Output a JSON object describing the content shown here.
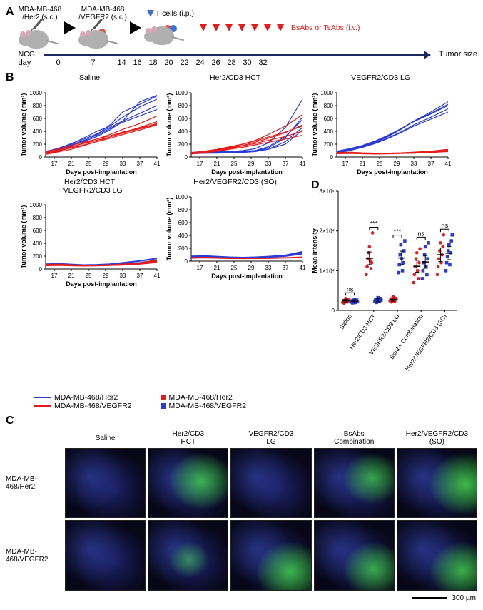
{
  "panelA": {
    "label": "A",
    "mouse_strain": "NCG",
    "injections": [
      {
        "label": "MDA-MB-468\n/Her2 (s.c.)"
      },
      {
        "label": "MDA-MB-468\n/VEGFR2 (s.c.)"
      }
    ],
    "tcell_label": "T cells (i.p.)",
    "tcell_arrow_color": "#3a6fd8",
    "treatment_label": "BsAbs or TsAbs (i.v.)",
    "treatment_arrow_color": "#e61c1c",
    "timeline_label": "Tumor size",
    "day_label": "day",
    "days": [
      0,
      7,
      14,
      16,
      18,
      20,
      22,
      24,
      26,
      28,
      30,
      32
    ],
    "treatment_days": [
      16,
      18,
      20,
      22,
      24,
      26,
      28
    ]
  },
  "panelB": {
    "label": "B",
    "ylabel": "Tumor volume (mm³)",
    "xlabel": "Days post-implantation",
    "ylim": [
      0,
      1000
    ],
    "ytick_step": 200,
    "xlim": [
      15,
      41
    ],
    "xticks": [
      17,
      21,
      25,
      29,
      33,
      37,
      41
    ],
    "line_colors": {
      "her2": "#2a3bd6",
      "vegfr2": "#e61c1c"
    },
    "charts": [
      {
        "title": "Saline",
        "her2_series": [
          [
            60,
            100,
            180,
            240,
            320,
            420,
            560,
            860,
            960
          ],
          [
            80,
            140,
            200,
            300,
            400,
            480,
            620,
            780,
            900
          ],
          [
            70,
            110,
            170,
            250,
            350,
            500,
            700,
            820,
            950
          ],
          [
            90,
            130,
            210,
            280,
            360,
            460,
            560,
            680,
            800
          ],
          [
            60,
            120,
            190,
            260,
            340,
            440,
            540,
            640,
            740
          ]
        ],
        "vegfr2_series": [
          [
            50,
            90,
            150,
            220,
            280,
            350,
            430,
            520,
            640
          ],
          [
            40,
            80,
            120,
            180,
            240,
            310,
            380,
            460,
            550
          ],
          [
            60,
            100,
            140,
            190,
            240,
            290,
            350,
            420,
            500
          ],
          [
            80,
            130,
            180,
            230,
            280,
            330,
            390,
            450,
            520
          ],
          [
            70,
            110,
            160,
            210,
            260,
            310,
            370,
            440,
            510
          ]
        ]
      },
      {
        "title": "Her2/CD3 HCT",
        "her2_series": [
          [
            60,
            70,
            80,
            85,
            90,
            100,
            120,
            200,
            420
          ],
          [
            50,
            60,
            65,
            70,
            80,
            95,
            140,
            300,
            620
          ],
          [
            70,
            75,
            80,
            85,
            100,
            130,
            220,
            460,
            900
          ],
          [
            60,
            65,
            70,
            70,
            80,
            100,
            160,
            320,
            580
          ],
          [
            55,
            60,
            60,
            65,
            70,
            85,
            120,
            240,
            460
          ]
        ],
        "vegfr2_series": [
          [
            60,
            80,
            110,
            150,
            200,
            260,
            350,
            480,
            660
          ],
          [
            50,
            70,
            100,
            140,
            180,
            230,
            290,
            380,
            500
          ],
          [
            70,
            90,
            120,
            160,
            200,
            250,
            310,
            390,
            480
          ],
          [
            55,
            75,
            100,
            130,
            170,
            210,
            260,
            320,
            400
          ],
          [
            45,
            65,
            90,
            120,
            150,
            190,
            230,
            280,
            340
          ]
        ]
      },
      {
        "title": "VEGFR2/CD3 LG",
        "her2_series": [
          [
            70,
            110,
            160,
            230,
            320,
            430,
            560,
            700,
            860
          ],
          [
            80,
            120,
            170,
            240,
            330,
            440,
            550,
            670,
            800
          ],
          [
            60,
            100,
            150,
            210,
            290,
            380,
            480,
            590,
            700
          ],
          [
            90,
            130,
            180,
            250,
            340,
            440,
            560,
            680,
            820
          ],
          [
            75,
            115,
            160,
            220,
            300,
            390,
            500,
            620,
            750
          ]
        ],
        "vegfr2_series": [
          [
            60,
            65,
            55,
            50,
            55,
            60,
            70,
            90,
            120
          ],
          [
            50,
            55,
            50,
            45,
            50,
            55,
            60,
            70,
            90
          ],
          [
            70,
            75,
            65,
            60,
            60,
            65,
            75,
            90,
            110
          ],
          [
            55,
            60,
            55,
            50,
            50,
            55,
            60,
            70,
            85
          ],
          [
            65,
            70,
            60,
            55,
            55,
            60,
            65,
            80,
            100
          ]
        ]
      },
      {
        "title": "Her2/CD3 HCT\n+ VEGFR2/CD3 LG",
        "her2_series": [
          [
            70,
            80,
            70,
            60,
            65,
            75,
            90,
            120,
            160
          ],
          [
            60,
            70,
            65,
            55,
            55,
            60,
            70,
            90,
            120
          ],
          [
            80,
            85,
            75,
            65,
            70,
            80,
            100,
            130,
            170
          ],
          [
            65,
            70,
            60,
            55,
            55,
            60,
            70,
            85,
            110
          ],
          [
            75,
            80,
            70,
            60,
            60,
            65,
            80,
            100,
            140
          ]
        ],
        "vegfr2_series": [
          [
            55,
            60,
            55,
            50,
            55,
            60,
            70,
            90,
            130
          ],
          [
            50,
            55,
            50,
            45,
            50,
            55,
            60,
            75,
            100
          ],
          [
            65,
            70,
            60,
            55,
            55,
            60,
            70,
            85,
            120
          ],
          [
            60,
            65,
            55,
            50,
            50,
            55,
            65,
            80,
            110
          ],
          [
            70,
            75,
            65,
            60,
            60,
            65,
            75,
            95,
            140
          ]
        ]
      },
      {
        "title": "Her2/VEGFR2/CD3 (SO)",
        "her2_series": [
          [
            70,
            75,
            70,
            60,
            55,
            60,
            70,
            90,
            140
          ],
          [
            60,
            65,
            60,
            55,
            50,
            55,
            65,
            80,
            120
          ],
          [
            80,
            85,
            75,
            65,
            60,
            65,
            75,
            95,
            150
          ],
          [
            65,
            70,
            60,
            55,
            50,
            55,
            60,
            75,
            110
          ],
          [
            75,
            80,
            70,
            60,
            55,
            60,
            70,
            85,
            130
          ]
        ],
        "vegfr2_series": [
          [
            50,
            55,
            50,
            45,
            40,
            42,
            45,
            50,
            60
          ],
          [
            45,
            50,
            45,
            40,
            38,
            40,
            42,
            48,
            55
          ],
          [
            55,
            60,
            55,
            50,
            45,
            45,
            50,
            55,
            65
          ],
          [
            48,
            52,
            48,
            42,
            40,
            40,
            45,
            50,
            58
          ],
          [
            52,
            58,
            52,
            46,
            42,
            44,
            48,
            52,
            62
          ]
        ]
      }
    ],
    "legend_lines": [
      {
        "color": "#2a3bd6",
        "label": "MDA-MB-468/Her2"
      },
      {
        "color": "#e61c1c",
        "label": "MDA-MB-468/VEGFR2"
      }
    ],
    "legend_points": [
      {
        "shape": "circle",
        "color": "#e61c1c",
        "label": "MDA-MB-468/Her2"
      },
      {
        "shape": "square",
        "color": "#2a3bd6",
        "label": "MDA-MB-468/VEGFR2"
      }
    ]
  },
  "panelC": {
    "label": "C",
    "columns": [
      "Saline",
      "Her2/CD3\nHCT",
      "VEGFR2/CD3\nLG",
      "BsAbs\nCombination",
      "Her2/VEGFR2/CD3\n(SO)"
    ],
    "rows": [
      "MDA-MB-468/Her2",
      "MDA-MB-468/VEGFR2"
    ],
    "green_intensity": [
      [
        0.05,
        0.55,
        0.06,
        0.45,
        0.65
      ],
      [
        0.05,
        0.15,
        0.6,
        0.5,
        0.55
      ]
    ],
    "scale_bar": "300 µm",
    "bg_color": "#070718",
    "blue_tone": "#2b3bc0",
    "green_tone": "#4cff4c"
  },
  "panelD": {
    "label": "D",
    "ylabel": "Mean intensity",
    "ylim": [
      0,
      30000
    ],
    "yticks": [
      0,
      10000,
      20000,
      30000
    ],
    "ytick_labels": [
      "0",
      "1×10⁴",
      "2×10⁴",
      "3×10⁴"
    ],
    "categories": [
      "Saline",
      "Her2/CD3 HCT",
      "VEGFR2/CD3 LG",
      "BsAbs Combination",
      "Her2/VEGFR2/CD3 (SO)"
    ],
    "groups": [
      {
        "her2": {
          "points": [
            2000,
            2500,
            1800,
            2200,
            3000,
            2600,
            2100,
            2800,
            2400
          ],
          "mean": 2400,
          "sem": 400
        },
        "vegfr2": {
          "points": [
            2100,
            2400,
            1900,
            2300,
            2700,
            2500,
            2000,
            2600,
            2200
          ],
          "mean": 2300,
          "sem": 380
        }
      },
      {
        "her2": {
          "points": [
            9000,
            11000,
            13000,
            14500,
            16000,
            12500,
            10500,
            12000,
            19500
          ],
          "mean": 13100,
          "sem": 1600
        },
        "vegfr2": {
          "points": [
            2300,
            2800,
            2000,
            2500,
            3200,
            2900,
            2200,
            3000,
            2600
          ],
          "mean": 2600,
          "sem": 420
        }
      },
      {
        "her2": {
          "points": [
            2400,
            2900,
            2100,
            2600,
            3500,
            3000,
            2300,
            3100,
            2800
          ],
          "mean": 2750,
          "sem": 440
        },
        "vegfr2": {
          "points": [
            9500,
            11500,
            14000,
            16500,
            13000,
            10000,
            12000,
            15000,
            17500
          ],
          "mean": 13200,
          "sem": 1700
        }
      },
      {
        "her2": {
          "points": [
            7000,
            9000,
            11000,
            13000,
            14500,
            10000,
            8000,
            12000,
            15500
          ],
          "mean": 11100,
          "sem": 1500
        },
        "vegfr2": {
          "points": [
            8000,
            10000,
            12000,
            14000,
            16000,
            11000,
            9000,
            13000,
            17000
          ],
          "mean": 12200,
          "sem": 1600
        }
      },
      {
        "her2": {
          "points": [
            9000,
            11000,
            13000,
            15000,
            17000,
            12000,
            14000,
            16000,
            19000
          ],
          "mean": 14000,
          "sem": 1700
        },
        "vegfr2": {
          "points": [
            10000,
            12000,
            13500,
            15000,
            16500,
            11500,
            14500,
            17500,
            19000
          ],
          "mean": 14400,
          "sem": 1650
        }
      }
    ],
    "significance": [
      {
        "pair": 0,
        "label": "ns"
      },
      {
        "pair": 1,
        "label": "***"
      },
      {
        "pair": 2,
        "label": "***"
      },
      {
        "pair": 3,
        "label": "ns"
      },
      {
        "pair": 4,
        "label": "ns"
      }
    ],
    "point_colors": {
      "her2": "#e61c1c",
      "vegfr2": "#2a3bd6"
    },
    "marker": {
      "her2": "circle",
      "vegfr2": "square"
    }
  }
}
